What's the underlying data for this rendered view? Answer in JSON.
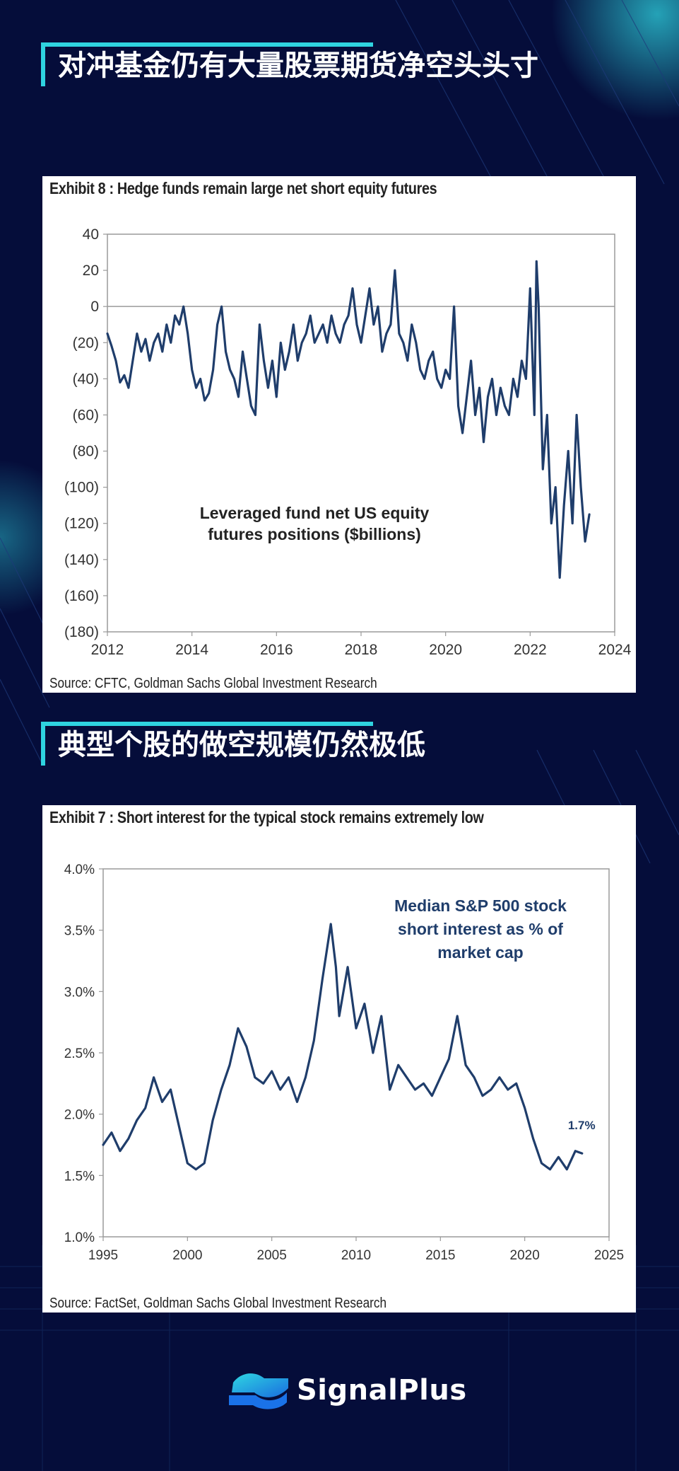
{
  "sections": [
    {
      "title": "对冲基金仍有大量股票期货净空头头寸"
    },
    {
      "title": "典型个股的做空规模仍然极低"
    }
  ],
  "brand": {
    "name": "SignalPlus"
  },
  "colors": {
    "background": "#050d3a",
    "accent": "#2fd3e0",
    "series": "#1f3d6b"
  },
  "chart_data": [
    {
      "type": "line",
      "title": "Exhibit 8 : Hedge funds remain large net short equity futures",
      "source": "Source: CFTC, Goldman Sachs Global Investment Research",
      "annotation": [
        "Leveraged fund net US equity",
        "futures positions ($billions)"
      ],
      "xlim": [
        2012,
        2024
      ],
      "ylim": [
        -180,
        40
      ],
      "x_ticks": [
        2012,
        2014,
        2016,
        2018,
        2020,
        2022,
        2024
      ],
      "y_ticks": [
        40,
        20,
        0,
        -20,
        -40,
        -60,
        -80,
        -100,
        -120,
        -140,
        -160,
        -180
      ],
      "y_tick_labels": [
        "40",
        "20",
        "0",
        "(20)",
        "(40)",
        "(60)",
        "(80)",
        "(100)",
        "(120)",
        "(140)",
        "(160)",
        "(180)"
      ],
      "x_tick_labels": [
        "2012",
        "2014",
        "2016",
        "2018",
        "2020",
        "2022",
        "2024"
      ],
      "reference_line": 0,
      "series": [
        {
          "x": [
            2012.0,
            2012.1,
            2012.2,
            2012.3,
            2012.4,
            2012.5,
            2012.6,
            2012.7,
            2012.8,
            2012.9,
            2013.0,
            2013.1,
            2013.2,
            2013.3,
            2013.4,
            2013.5,
            2013.6,
            2013.7,
            2013.8,
            2013.9,
            2014.0,
            2014.1,
            2014.2,
            2014.3,
            2014.4,
            2014.5,
            2014.6,
            2014.7,
            2014.8,
            2014.9,
            2015.0,
            2015.1,
            2015.2,
            2015.3,
            2015.4,
            2015.5,
            2015.6,
            2015.7,
            2015.8,
            2015.9,
            2016.0,
            2016.1,
            2016.2,
            2016.3,
            2016.4,
            2016.5,
            2016.6,
            2016.7,
            2016.8,
            2016.9,
            2017.0,
            2017.1,
            2017.2,
            2017.3,
            2017.4,
            2017.5,
            2017.6,
            2017.7,
            2017.8,
            2017.9,
            2018.0,
            2018.1,
            2018.2,
            2018.3,
            2018.4,
            2018.5,
            2018.6,
            2018.7,
            2018.8,
            2018.9,
            2019.0,
            2019.1,
            2019.2,
            2019.3,
            2019.4,
            2019.5,
            2019.6,
            2019.7,
            2019.8,
            2019.9,
            2020.0,
            2020.1,
            2020.2,
            2020.3,
            2020.4,
            2020.5,
            2020.6,
            2020.7,
            2020.8,
            2020.9,
            2021.0,
            2021.1,
            2021.2,
            2021.3,
            2021.4,
            2021.5,
            2021.6,
            2021.7,
            2021.8,
            2021.9,
            2022.0,
            2022.1,
            2022.15,
            2022.2,
            2022.3,
            2022.4,
            2022.5,
            2022.6,
            2022.7,
            2022.8,
            2022.9,
            2023.0,
            2023.1,
            2023.2,
            2023.3,
            2023.4
          ],
          "y": [
            -15,
            -22,
            -30,
            -42,
            -38,
            -45,
            -30,
            -15,
            -25,
            -18,
            -30,
            -20,
            -15,
            -25,
            -10,
            -20,
            -5,
            -10,
            0,
            -15,
            -35,
            -45,
            -40,
            -52,
            -48,
            -35,
            -10,
            0,
            -25,
            -35,
            -40,
            -50,
            -25,
            -40,
            -55,
            -60,
            -10,
            -30,
            -45,
            -30,
            -50,
            -20,
            -35,
            -25,
            -10,
            -30,
            -20,
            -15,
            -5,
            -20,
            -15,
            -10,
            -20,
            -5,
            -15,
            -20,
            -10,
            -5,
            10,
            -10,
            -20,
            -5,
            10,
            -10,
            0,
            -25,
            -15,
            -10,
            20,
            -15,
            -20,
            -30,
            -10,
            -20,
            -35,
            -40,
            -30,
            -25,
            -40,
            -45,
            -35,
            -40,
            0,
            -55,
            -70,
            -50,
            -30,
            -60,
            -45,
            -75,
            -50,
            -40,
            -60,
            -45,
            -55,
            -60,
            -40,
            -50,
            -30,
            -40,
            10,
            -60,
            25,
            0,
            -90,
            -60,
            -120,
            -100,
            -150,
            -110,
            -80,
            -120,
            -60,
            -100,
            -130,
            -115
          ]
        }
      ]
    },
    {
      "type": "line",
      "title": "Exhibit 7 : Short interest for the typical stock remains extremely low",
      "source": "Source: FactSet, Goldman Sachs Global Investment Research",
      "annotation": [
        "Median  S&P 500 stock",
        "short interest  as % of",
        "market cap"
      ],
      "end_label": "1.7%",
      "xlim": [
        1995,
        2025
      ],
      "ylim": [
        1.0,
        4.0
      ],
      "x_ticks": [
        1995,
        2000,
        2005,
        2010,
        2015,
        2020,
        2025
      ],
      "x_tick_labels": [
        "1995",
        "2000",
        "2005",
        "2010",
        "2015",
        "2020",
        "2025"
      ],
      "y_ticks": [
        1.0,
        1.5,
        2.0,
        2.5,
        3.0,
        3.5,
        4.0
      ],
      "y_tick_labels": [
        "1.0%",
        "1.5%",
        "2.0%",
        "2.5%",
        "3.0%",
        "3.5%",
        "4.0%"
      ],
      "series": [
        {
          "x": [
            1995.0,
            1995.5,
            1996.0,
            1996.5,
            1997.0,
            1997.5,
            1998.0,
            1998.5,
            1999.0,
            1999.5,
            2000.0,
            2000.5,
            2001.0,
            2001.5,
            2002.0,
            2002.5,
            2003.0,
            2003.5,
            2004.0,
            2004.5,
            2005.0,
            2005.5,
            2006.0,
            2006.5,
            2007.0,
            2007.5,
            2008.0,
            2008.5,
            2008.8,
            2009.0,
            2009.5,
            2010.0,
            2010.5,
            2011.0,
            2011.5,
            2012.0,
            2012.5,
            2013.0,
            2013.5,
            2014.0,
            2014.5,
            2015.0,
            2015.5,
            2016.0,
            2016.5,
            2017.0,
            2017.5,
            2018.0,
            2018.5,
            2019.0,
            2019.5,
            2020.0,
            2020.5,
            2021.0,
            2021.5,
            2022.0,
            2022.5,
            2023.0,
            2023.4
          ],
          "y": [
            1.75,
            1.85,
            1.7,
            1.8,
            1.95,
            2.05,
            2.3,
            2.1,
            2.2,
            1.9,
            1.6,
            1.55,
            1.6,
            1.95,
            2.2,
            2.4,
            2.7,
            2.55,
            2.3,
            2.25,
            2.35,
            2.2,
            2.3,
            2.1,
            2.3,
            2.6,
            3.1,
            3.55,
            3.2,
            2.8,
            3.2,
            2.7,
            2.9,
            2.5,
            2.8,
            2.2,
            2.4,
            2.3,
            2.2,
            2.25,
            2.15,
            2.3,
            2.45,
            2.8,
            2.4,
            2.3,
            2.15,
            2.2,
            2.3,
            2.2,
            2.25,
            2.05,
            1.8,
            1.6,
            1.55,
            1.65,
            1.55,
            1.7,
            1.68
          ]
        }
      ]
    }
  ]
}
